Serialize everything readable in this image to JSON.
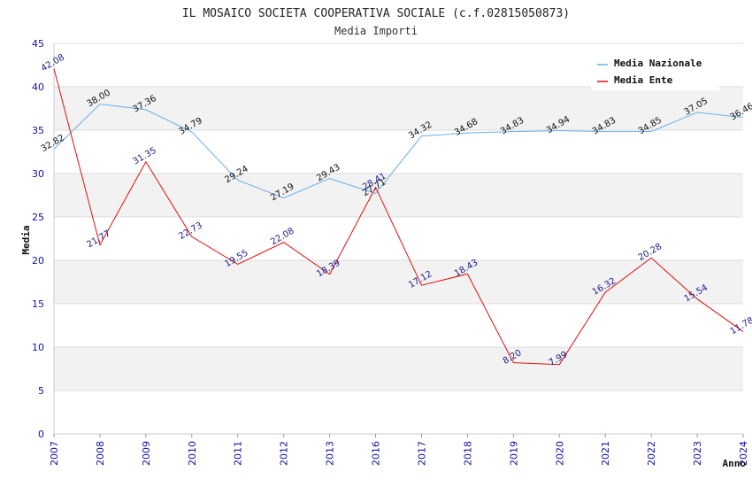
{
  "chart_data": {
    "type": "line",
    "title": "IL MOSAICO SOCIETA COOPERATIVA SOCIALE (c.f.02815050873)",
    "subtitle": "Media Importi",
    "xlabel": "Anno",
    "ylabel": "Media",
    "ylim": [
      0,
      45
    ],
    "yticks": [
      "0",
      "5",
      "10",
      "15",
      "20",
      "25",
      "30",
      "35",
      "40",
      "45"
    ],
    "categories": [
      "2007",
      "2008",
      "2009",
      "2010",
      "2011",
      "2012",
      "2013",
      "2016",
      "2017",
      "2018",
      "2019",
      "2020",
      "2021",
      "2022",
      "2023",
      "2024"
    ],
    "series": [
      {
        "name": "Media Nazionale",
        "color": "#6aaee8",
        "values": [
          32.82,
          38.0,
          37.36,
          34.79,
          29.24,
          27.19,
          29.43,
          27.71,
          34.32,
          34.68,
          34.83,
          34.94,
          34.83,
          34.85,
          37.05,
          36.46
        ],
        "labels": [
          "32.82",
          "38.00",
          "37.36",
          "34.79",
          "29.24",
          "27.19",
          "29.43",
          "27.71",
          "34.32",
          "34.68",
          "34.83",
          "34.94",
          "34.83",
          "34.85",
          "37.05",
          "36.46"
        ]
      },
      {
        "name": "Media Ente",
        "color": "#e01010",
        "values": [
          42.08,
          21.77,
          31.35,
          22.73,
          19.55,
          22.08,
          18.39,
          28.41,
          17.12,
          18.43,
          8.2,
          7.99,
          16.32,
          20.28,
          15.54,
          11.78
        ],
        "labels": [
          "42.08",
          "21.77",
          "31.35",
          "22.73",
          "19.55",
          "22.08",
          "18.39",
          "28.41",
          "17.12",
          "18.43",
          "8.20",
          "7.99",
          "16.32",
          "20.28",
          "15.54",
          "11.78"
        ]
      }
    ],
    "legend_position": "top-right",
    "grid": true
  }
}
